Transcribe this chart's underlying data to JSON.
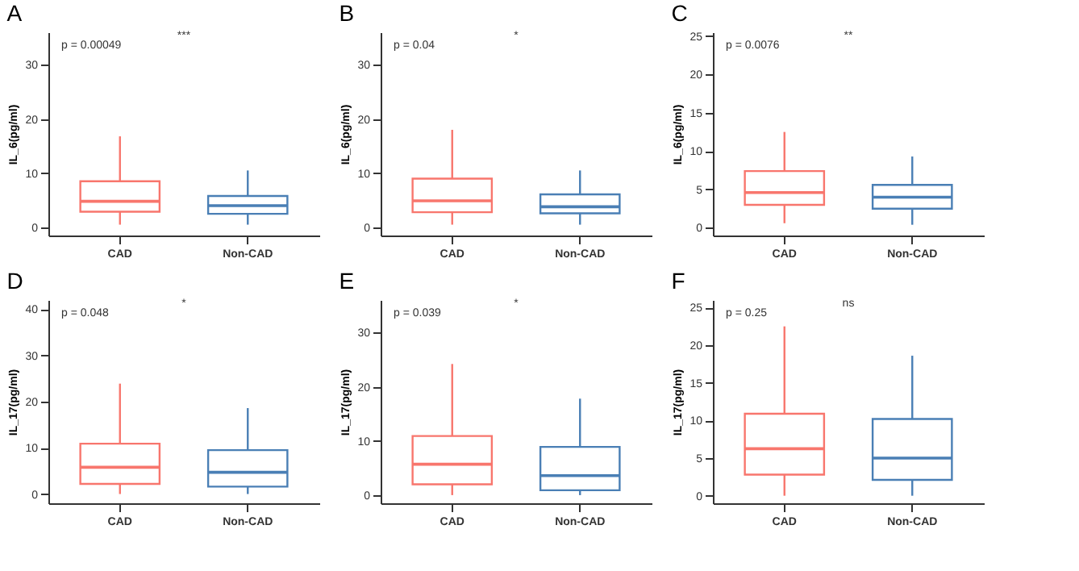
{
  "chart_data": [
    {
      "type": "box",
      "title": "A",
      "ylabel": "IL_6(pg/ml)",
      "categories": [
        "CAD",
        "Non-CAD"
      ],
      "colors": [
        "#f8766d",
        "#4a7fb5"
      ],
      "boxes": [
        {
          "low": 0.5,
          "q1": 2.9,
          "median": 4.8,
          "q3": 8.5,
          "high": 16.8
        },
        {
          "low": 0.5,
          "q1": 2.5,
          "median": 4.0,
          "q3": 5.8,
          "high": 10.5
        }
      ],
      "ylim": [
        -1.5,
        36
      ],
      "yticks": [
        0,
        10,
        20,
        30
      ],
      "annotations": [
        "p = 0.00049",
        "***"
      ]
    },
    {
      "type": "box",
      "title": "B",
      "ylabel": "IL_6(pg/ml)",
      "categories": [
        "CAD",
        "Non-CAD"
      ],
      "colors": [
        "#f8766d",
        "#4a7fb5"
      ],
      "boxes": [
        {
          "low": 0.5,
          "q1": 2.8,
          "median": 4.9,
          "q3": 9.0,
          "high": 18.0
        },
        {
          "low": 0.5,
          "q1": 2.6,
          "median": 3.8,
          "q3": 6.1,
          "high": 10.5
        }
      ],
      "ylim": [
        -1.5,
        36
      ],
      "yticks": [
        0,
        10,
        20,
        30
      ],
      "annotations": [
        "p = 0.04",
        "*"
      ]
    },
    {
      "type": "box",
      "title": "C",
      "ylabel": "IL_6(pg/ml)",
      "categories": [
        "CAD",
        "Non-CAD"
      ],
      "colors": [
        "#f8766d",
        "#4a7fb5"
      ],
      "boxes": [
        {
          "low": 0.6,
          "q1": 3.0,
          "median": 4.6,
          "q3": 7.4,
          "high": 12.5
        },
        {
          "low": 0.4,
          "q1": 2.5,
          "median": 4.0,
          "q3": 5.6,
          "high": 9.3
        }
      ],
      "ylim": [
        -1,
        25.5
      ],
      "yticks": [
        0,
        5,
        10,
        15,
        20,
        25
      ],
      "annotations": [
        "p = 0.0076",
        "**"
      ]
    },
    {
      "type": "box",
      "title": "D",
      "ylabel": "IL_17(pg/ml)",
      "categories": [
        "CAD",
        "Non-CAD"
      ],
      "colors": [
        "#f8766d",
        "#4a7fb5"
      ],
      "boxes": [
        {
          "low": 0,
          "q1": 2.2,
          "median": 5.8,
          "q3": 10.9,
          "high": 23.9
        },
        {
          "low": 0,
          "q1": 1.6,
          "median": 4.7,
          "q3": 9.5,
          "high": 18.6
        }
      ],
      "ylim": [
        -2,
        42
      ],
      "yticks": [
        0,
        10,
        20,
        30,
        40
      ],
      "annotations": [
        "p = 0.048",
        "*"
      ]
    },
    {
      "type": "box",
      "title": "E",
      "ylabel": "IL_17(pg/ml)",
      "categories": [
        "CAD",
        "Non-CAD"
      ],
      "colors": [
        "#f8766d",
        "#4a7fb5"
      ],
      "boxes": [
        {
          "low": 0,
          "q1": 2.0,
          "median": 5.7,
          "q3": 10.9,
          "high": 24.2
        },
        {
          "low": 0,
          "q1": 0.9,
          "median": 3.6,
          "q3": 8.9,
          "high": 17.8
        }
      ],
      "ylim": [
        -1.5,
        36
      ],
      "yticks": [
        0,
        10,
        20,
        30
      ],
      "annotations": [
        "p = 0.039",
        "*"
      ]
    },
    {
      "type": "box",
      "title": "F",
      "ylabel": "IL_17(pg/ml)",
      "categories": [
        "CAD",
        "Non-CAD"
      ],
      "colors": [
        "#f8766d",
        "#4a7fb5"
      ],
      "boxes": [
        {
          "low": 0,
          "q1": 2.8,
          "median": 6.25,
          "q3": 10.9,
          "high": 22.5
        },
        {
          "low": 0,
          "q1": 2.1,
          "median": 5.0,
          "q3": 10.2,
          "high": 18.6
        }
      ],
      "ylim": [
        -1,
        26
      ],
      "yticks": [
        0,
        5,
        10,
        15,
        20,
        25
      ],
      "annotations": [
        "p = 0.25",
        "ns"
      ]
    }
  ]
}
